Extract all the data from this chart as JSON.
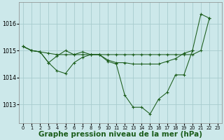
{
  "bg_color": "#cce8ea",
  "grid_color": "#a8ccce",
  "line_color": "#1a5c1a",
  "xlabel": "Graphe pression niveau de la mer (hPa)",
  "xlabel_fontsize": 7.5,
  "yticks": [
    1013,
    1014,
    1015,
    1016
  ],
  "xticks": [
    0,
    1,
    2,
    3,
    4,
    5,
    6,
    7,
    8,
    9,
    10,
    11,
    12,
    13,
    14,
    15,
    16,
    17,
    18,
    19,
    20,
    21,
    22,
    23
  ],
  "ylim": [
    1012.3,
    1016.8
  ],
  "xlim": [
    -0.5,
    23.5
  ],
  "series1_x": [
    0,
    1,
    2,
    3,
    4,
    5,
    6,
    7,
    8,
    9,
    10,
    11,
    12,
    13,
    14,
    15,
    16,
    17,
    18,
    19,
    20,
    21,
    22
  ],
  "series1_y": [
    1015.15,
    1015.0,
    1014.95,
    1014.9,
    1014.85,
    1014.85,
    1014.85,
    1014.85,
    1014.85,
    1014.85,
    1014.85,
    1014.85,
    1014.85,
    1014.85,
    1014.85,
    1014.85,
    1014.85,
    1014.85,
    1014.85,
    1014.85,
    1014.85,
    1015.0,
    1016.2
  ],
  "series2_x": [
    0,
    1,
    2,
    3,
    4,
    5,
    6,
    7,
    8,
    9,
    10,
    11,
    12,
    13,
    14,
    15,
    16,
    17,
    18,
    19,
    20,
    21,
    22
  ],
  "series2_y": [
    1015.15,
    1015.0,
    1014.95,
    1014.55,
    1014.25,
    1014.15,
    1014.55,
    1014.75,
    1014.85,
    1014.85,
    1014.6,
    1014.5,
    1013.35,
    1012.9,
    1012.9,
    1012.65,
    1013.2,
    1013.45,
    1014.1,
    1014.1,
    1015.0,
    1016.35,
    1016.2
  ],
  "series3_x": [
    0,
    1,
    2,
    3,
    4,
    5,
    6,
    7,
    8,
    9,
    10,
    11,
    12,
    13,
    14,
    15,
    16,
    17,
    18,
    19,
    20
  ],
  "series3_y": [
    1015.15,
    1015.0,
    1014.95,
    1014.55,
    1014.8,
    1015.0,
    1014.85,
    1014.95,
    1014.85,
    1014.85,
    1014.65,
    1014.55,
    1014.55,
    1014.5,
    1014.5,
    1014.5,
    1014.5,
    1014.6,
    1014.7,
    1014.9,
    1015.0
  ]
}
